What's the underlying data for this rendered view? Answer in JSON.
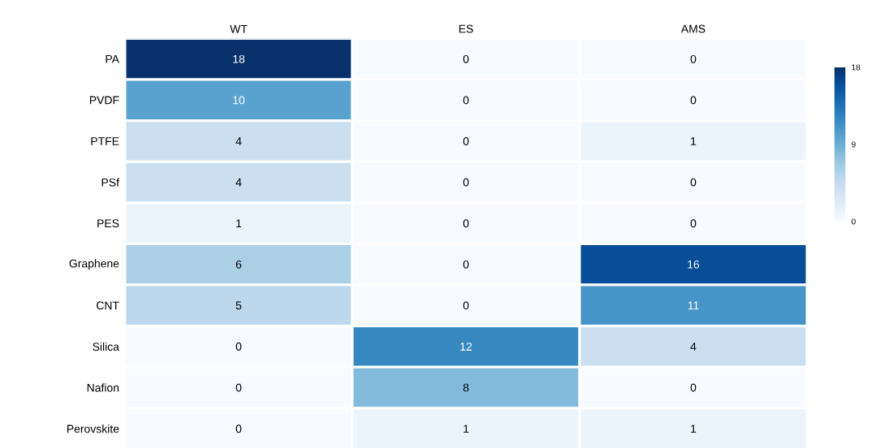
{
  "chart_data": {
    "type": "heatmap",
    "categories": [
      "WT",
      "ES",
      "AMS"
    ],
    "y_categories": [
      "PA",
      "PVDF",
      "PTFE",
      "PSf",
      "PES",
      "Graphene",
      "CNT",
      "Silica",
      "Nafion",
      "Perovskite"
    ],
    "cells": [
      [
        18,
        0,
        0
      ],
      [
        10,
        0,
        0
      ],
      [
        4,
        0,
        1
      ],
      [
        4,
        0,
        0
      ],
      [
        1,
        0,
        0
      ],
      [
        6,
        0,
        16
      ],
      [
        5,
        0,
        11
      ],
      [
        0,
        12,
        4
      ],
      [
        0,
        8,
        0
      ],
      [
        0,
        1,
        1
      ]
    ],
    "clim": [
      0,
      18
    ],
    "cticks": [
      0,
      9,
      18
    ],
    "data_labels": true
  }
}
